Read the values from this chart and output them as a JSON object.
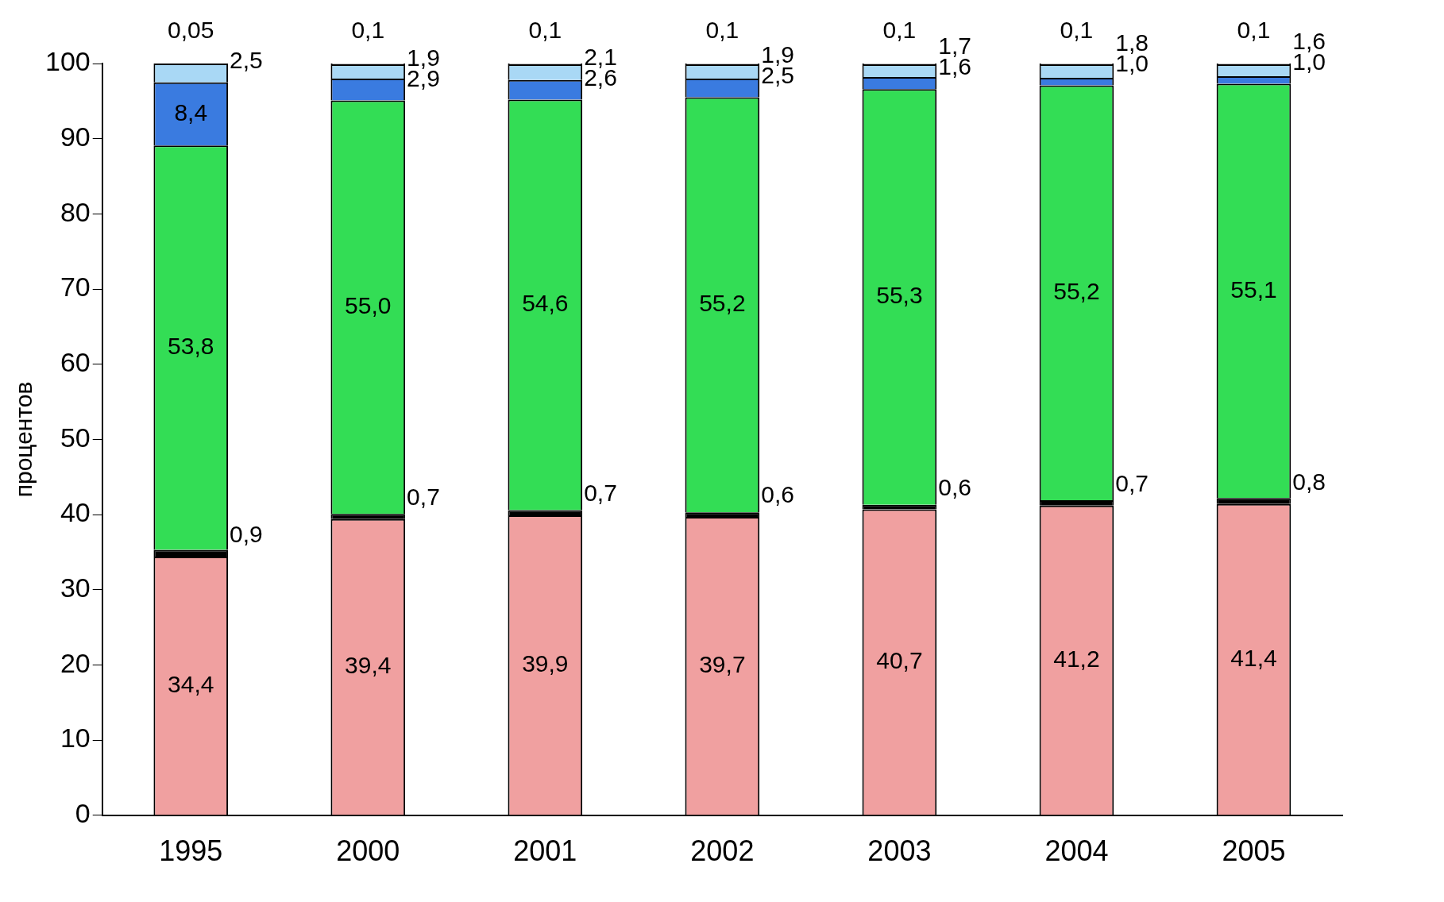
{
  "chart_data": {
    "type": "bar",
    "stacked": true,
    "ylabel": "процентов",
    "categories": [
      "1995",
      "2000",
      "2001",
      "2002",
      "2003",
      "2004",
      "2005"
    ],
    "ylim": [
      0,
      100
    ],
    "yticks": [
      0,
      10,
      20,
      30,
      40,
      50,
      60,
      70,
      80,
      90,
      100
    ],
    "grid": false,
    "legend": false,
    "series": [
      {
        "color": "#f0a0a0",
        "values": [
          34.4,
          39.4,
          39.9,
          39.7,
          40.7,
          41.2,
          41.4
        ],
        "value_labels": [
          "34,4",
          "39,4",
          "39,9",
          "39,7",
          "40,7",
          "41,2",
          "41,4"
        ]
      },
      {
        "color": "#000000",
        "values": [
          0.9,
          0.7,
          0.7,
          0.6,
          0.6,
          0.7,
          0.8
        ],
        "value_labels": [
          "0,9",
          "0,7",
          "0,7",
          "0,6",
          "0,6",
          "0,7",
          "0,8"
        ]
      },
      {
        "color": "#33dd55",
        "values": [
          53.8,
          55.0,
          54.6,
          55.2,
          55.3,
          55.2,
          55.1
        ],
        "value_labels": [
          "53,8",
          "55,0",
          "54,6",
          "55,2",
          "55,3",
          "55,2",
          "55,1"
        ]
      },
      {
        "color": "#3a7be0",
        "values": [
          8.4,
          2.9,
          2.6,
          2.5,
          1.6,
          1.0,
          1.0
        ],
        "value_labels": [
          "8,4",
          "2,9",
          "2,6",
          "2,5",
          "1,6",
          "1,0",
          "1,0"
        ]
      },
      {
        "color": "#a9d8f5",
        "values": [
          2.5,
          1.9,
          2.1,
          1.9,
          1.7,
          1.8,
          1.6
        ],
        "value_labels": [
          "2,5",
          "1,9",
          "2,1",
          "1,9",
          "1,7",
          "1,8",
          "1,6"
        ]
      },
      {
        "color": "#ffffff",
        "values": [
          0.05,
          0.1,
          0.1,
          0.1,
          0.1,
          0.1,
          0.1
        ],
        "value_labels": [
          "0,05",
          "0,1",
          "0,1",
          "0,1",
          "0,1",
          "0,1",
          "0,1"
        ]
      }
    ]
  }
}
